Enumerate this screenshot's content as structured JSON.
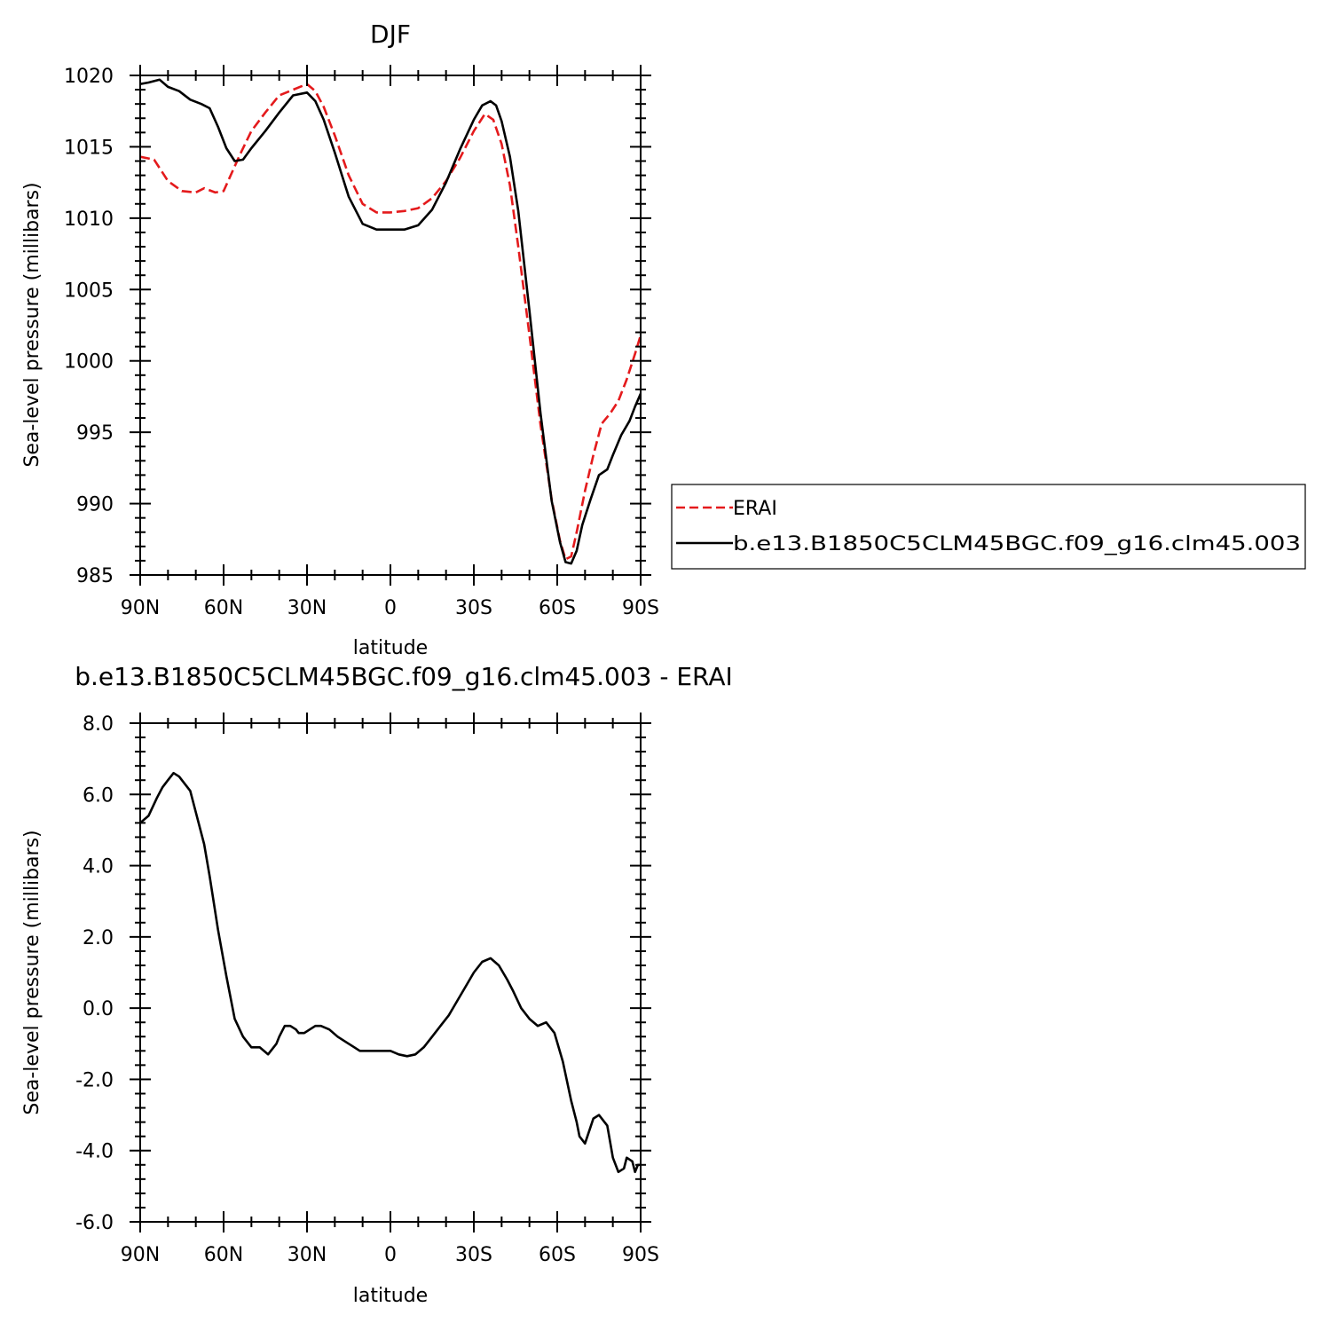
{
  "chart_data": [
    {
      "type": "line",
      "title": "DJF",
      "xlabel": "latitude",
      "ylabel": "Sea-level pressure (millibars)",
      "xlim": [
        90,
        -90
      ],
      "ylim": [
        985,
        1020
      ],
      "xticks": [
        90,
        60,
        30,
        0,
        -30,
        -60,
        -90
      ],
      "xtick_labels": [
        "90N",
        "60N",
        "30N",
        "0",
        "30S",
        "60S",
        "90S"
      ],
      "yticks": [
        985,
        990,
        995,
        1000,
        1005,
        1010,
        1015,
        1020
      ],
      "ytick_labels": [
        "985",
        "990",
        "995",
        "1000",
        "1005",
        "1010",
        "1015",
        "1020"
      ],
      "legend_placement": "right, outside plot",
      "grid": false,
      "series": [
        {
          "name": "ERAI",
          "color": "#e41a1c",
          "style": "dashed",
          "x": [
            90,
            85,
            80,
            75,
            70,
            67,
            63,
            60,
            57,
            54,
            50,
            45,
            40,
            35,
            30,
            27,
            24,
            20,
            15,
            10,
            5,
            0,
            -5,
            -10,
            -15,
            -20,
            -25,
            -30,
            -34,
            -37,
            -40,
            -43,
            -46,
            -50,
            -54,
            -58,
            -61,
            -63,
            -65,
            -67,
            -70,
            -73,
            -76,
            -79,
            -82,
            -85,
            -88,
            -90
          ],
          "y": [
            1014.3,
            1014.1,
            1012.6,
            1011.9,
            1011.8,
            1012.1,
            1011.8,
            1011.9,
            1013.2,
            1014.5,
            1016.1,
            1017.4,
            1018.6,
            1019.0,
            1019.4,
            1018.9,
            1017.8,
            1015.8,
            1013.0,
            1011.0,
            1010.4,
            1010.4,
            1010.5,
            1010.7,
            1011.4,
            1012.6,
            1014.2,
            1016.1,
            1017.3,
            1016.9,
            1015.2,
            1012.3,
            1008.0,
            1001.8,
            995.5,
            990.3,
            987.4,
            986.1,
            986.3,
            988.0,
            990.9,
            993.4,
            995.6,
            996.3,
            997.2,
            998.7,
            1000.5,
            1001.8
          ]
        },
        {
          "name": "b.e13.B1850C5CLM45BGC.f09_g16.clm45.003",
          "color": "#000000",
          "style": "solid",
          "x": [
            90,
            87,
            83,
            80,
            76,
            72,
            68,
            65,
            62,
            59,
            56,
            53,
            50,
            45,
            40,
            35,
            30,
            27,
            24,
            20,
            15,
            10,
            5,
            0,
            -5,
            -10,
            -15,
            -20,
            -25,
            -30,
            -33,
            -36,
            -38,
            -40,
            -43,
            -46,
            -50,
            -54,
            -58,
            -61,
            -63,
            -65,
            -67,
            -69,
            -72,
            -75,
            -78,
            -80,
            -83,
            -86,
            -88,
            -90
          ],
          "y": [
            1019.4,
            1019.5,
            1019.7,
            1019.2,
            1018.9,
            1018.3,
            1018.0,
            1017.7,
            1016.4,
            1014.9,
            1014.0,
            1014.1,
            1014.9,
            1016.1,
            1017.4,
            1018.6,
            1018.8,
            1018.2,
            1016.9,
            1014.6,
            1011.5,
            1009.6,
            1009.2,
            1009.2,
            1009.2,
            1009.5,
            1010.6,
            1012.5,
            1014.8,
            1016.9,
            1017.9,
            1018.2,
            1017.9,
            1016.8,
            1014.3,
            1010.5,
            1003.5,
            996.3,
            990.2,
            987.3,
            985.9,
            985.8,
            986.7,
            988.5,
            990.3,
            992.0,
            992.4,
            993.4,
            994.8,
            995.8,
            996.8,
            997.7
          ]
        }
      ]
    },
    {
      "type": "line",
      "title": "b.e13.B1850C5CLM45BGC.f09_g16.clm45.003 - ERAI",
      "xlabel": "latitude",
      "ylabel": "Sea-level pressure (millibars)",
      "xlim": [
        90,
        -90
      ],
      "ylim": [
        -6.0,
        8.0
      ],
      "xticks": [
        90,
        60,
        30,
        0,
        -30,
        -60,
        -90
      ],
      "xtick_labels": [
        "90N",
        "60N",
        "30N",
        "0",
        "30S",
        "60S",
        "90S"
      ],
      "yticks": [
        -6.0,
        -4.0,
        -2.0,
        0.0,
        2.0,
        4.0,
        6.0,
        8.0
      ],
      "ytick_labels": [
        "-6.0",
        "-4.0",
        "-2.0",
        "0.0",
        "2.0",
        "4.0",
        "6.0",
        "8.0"
      ],
      "grid": false,
      "series": [
        {
          "color": "#000000",
          "style": "solid",
          "x": [
            90,
            87,
            84,
            82,
            80,
            78,
            76,
            74,
            72,
            70,
            67,
            65,
            62,
            59,
            56,
            53,
            50,
            47,
            44,
            41,
            40,
            38,
            36,
            34,
            33,
            31,
            29,
            27,
            25,
            22,
            19,
            17,
            15,
            13,
            11,
            9,
            7,
            5,
            3,
            0,
            -3,
            -6,
            -9,
            -12,
            -15,
            -18,
            -21,
            -24,
            -27,
            -30,
            -33,
            -36,
            -39,
            -42,
            -44,
            -47,
            -50,
            -53,
            -56,
            -59,
            -62,
            -65,
            -67,
            -68,
            -70,
            -73,
            -75,
            -78,
            -80,
            -82,
            -84,
            -85,
            -87,
            -88,
            -89,
            -90
          ],
          "y": [
            5.2,
            5.4,
            5.9,
            6.2,
            6.4,
            6.6,
            6.5,
            6.3,
            6.1,
            5.5,
            4.6,
            3.7,
            2.2,
            0.9,
            -0.3,
            -0.8,
            -1.1,
            -1.1,
            -1.3,
            -1.0,
            -0.8,
            -0.5,
            -0.5,
            -0.6,
            -0.7,
            -0.7,
            -0.6,
            -0.5,
            -0.5,
            -0.6,
            -0.8,
            -0.9,
            -1.0,
            -1.1,
            -1.2,
            -1.2,
            -1.2,
            -1.2,
            -1.2,
            -1.2,
            -1.3,
            -1.35,
            -1.3,
            -1.1,
            -0.8,
            -0.5,
            -0.2,
            0.2,
            0.6,
            1.0,
            1.3,
            1.4,
            1.2,
            0.8,
            0.5,
            0.0,
            -0.3,
            -0.5,
            -0.4,
            -0.7,
            -1.5,
            -2.6,
            -3.2,
            -3.6,
            -3.8,
            -3.1,
            -3.0,
            -3.3,
            -4.2,
            -4.6,
            -4.5,
            -4.2,
            -4.3,
            -4.6,
            -4.4,
            -4.4
          ]
        }
      ]
    }
  ]
}
